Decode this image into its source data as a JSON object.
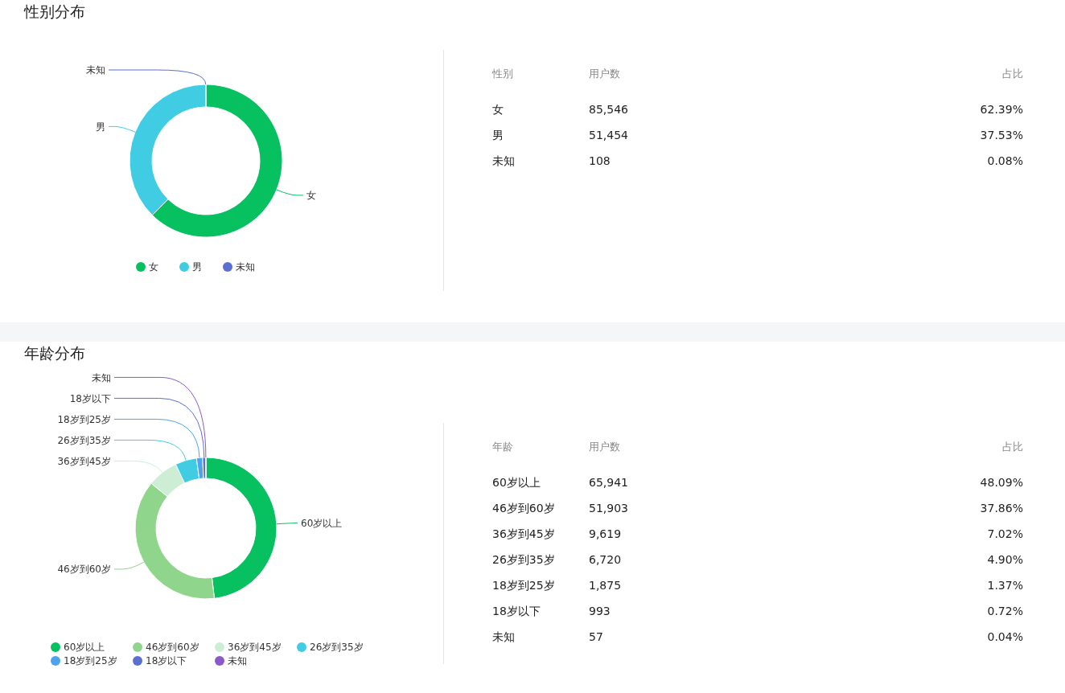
{
  "chart_data": [
    {
      "type": "donut",
      "title": "性别分布",
      "categories": [
        "女",
        "男",
        "未知"
      ],
      "values": [
        62.39,
        37.53,
        0.08
      ],
      "colors": [
        "#07c160",
        "#40cde3",
        "#5b6fd0"
      ],
      "legend": "bottom"
    },
    {
      "type": "other",
      "annotations": [
        "性别",
        "用户数",
        "占比",
        "女",
        "85,546",
        "62.39%",
        "男",
        "51,454",
        "37.53%",
        "未知",
        "108",
        "0.08%"
      ]
    },
    {
      "type": "donut",
      "title": "年龄分布",
      "categories": [
        "60岁以上",
        "46岁到60岁",
        "36岁到45岁",
        "26岁到35岁",
        "18岁到25岁",
        "18岁以下",
        "未知"
      ],
      "values": [
        48.09,
        37.86,
        7.02,
        4.9,
        1.37,
        0.72,
        0.04
      ],
      "colors": [
        "#07c160",
        "#8fd68c",
        "#cdeed5",
        "#40cde3",
        "#4da3ec",
        "#5b6fd0",
        "#8a5acb"
      ],
      "legend": "bottom"
    },
    {
      "type": "other",
      "annotations": [
        "年龄",
        "用户数",
        "占比",
        "60岁以上",
        "65,941",
        "48.09%",
        "46岁到60岁",
        "51,903",
        "37.86%",
        "36岁到45岁",
        "9,619",
        "7.02%",
        "26岁到35岁",
        "6,720",
        "4.90%",
        "18岁到25岁",
        "1,875",
        "1.37%",
        "18岁以下",
        "993",
        "0.72%",
        "未知",
        "57",
        "0.04%"
      ]
    }
  ]
}
